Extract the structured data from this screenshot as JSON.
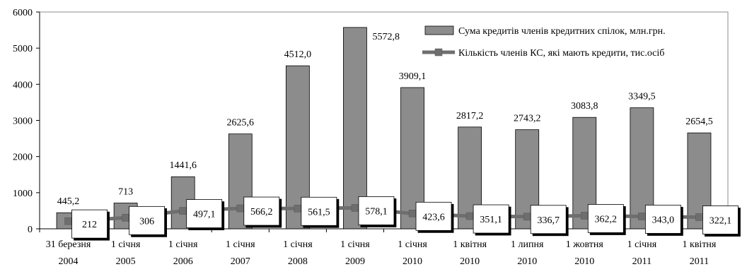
{
  "chart_data": {
    "type": "bar",
    "categories": [
      [
        "31 березня",
        "2004"
      ],
      [
        "1 січня",
        "2005"
      ],
      [
        "1 січня",
        "2006"
      ],
      [
        "1 січня",
        "2007"
      ],
      [
        "1 січня",
        "2008"
      ],
      [
        "1 січня",
        "2009"
      ],
      [
        "1 січня",
        "2010"
      ],
      [
        "1 квітня",
        "2010"
      ],
      [
        "1 липня",
        "2010"
      ],
      [
        "1 жовтня",
        "2010"
      ],
      [
        "1 січня",
        "2011"
      ],
      [
        "1 квітня",
        "2011"
      ]
    ],
    "series": [
      {
        "name": "Сума кредитів членів кредитних спілок,  млн.грн.",
        "kind": "bar",
        "color": "#8c8c8c",
        "values": [
          445.2,
          713,
          1441.6,
          2625.6,
          4512.0,
          5572.8,
          3909.1,
          2817.2,
          2743.2,
          3083.8,
          3349.5,
          2654.5
        ],
        "labels": [
          "445,2",
          "713",
          "1441,6",
          "2625,6",
          "4512,0",
          "5572,8",
          "3909,1",
          "2817,2",
          "2743,2",
          "3083,8",
          "3349,5",
          "2654,5"
        ]
      },
      {
        "name": "Кількість членів КС, які мають кредити, тис.осіб",
        "kind": "line",
        "color": "#6e6e6e",
        "values": [
          212,
          306,
          497.1,
          566.2,
          561.5,
          578.1,
          423.6,
          351.1,
          336.7,
          362.2,
          343.0,
          322.1
        ],
        "labels": [
          "212",
          "306",
          "497,1",
          "566,2",
          "561,5",
          "578,1",
          "423,6",
          "351,1",
          "336,7",
          "362,2",
          "343,0",
          "322,1"
        ]
      }
    ],
    "yticks": [
      "0",
      "1000",
      "2000",
      "3000",
      "4000",
      "5000",
      "6000"
    ],
    "ylim": [
      0,
      6000
    ],
    "legend_position": "top-right",
    "grid": false
  }
}
